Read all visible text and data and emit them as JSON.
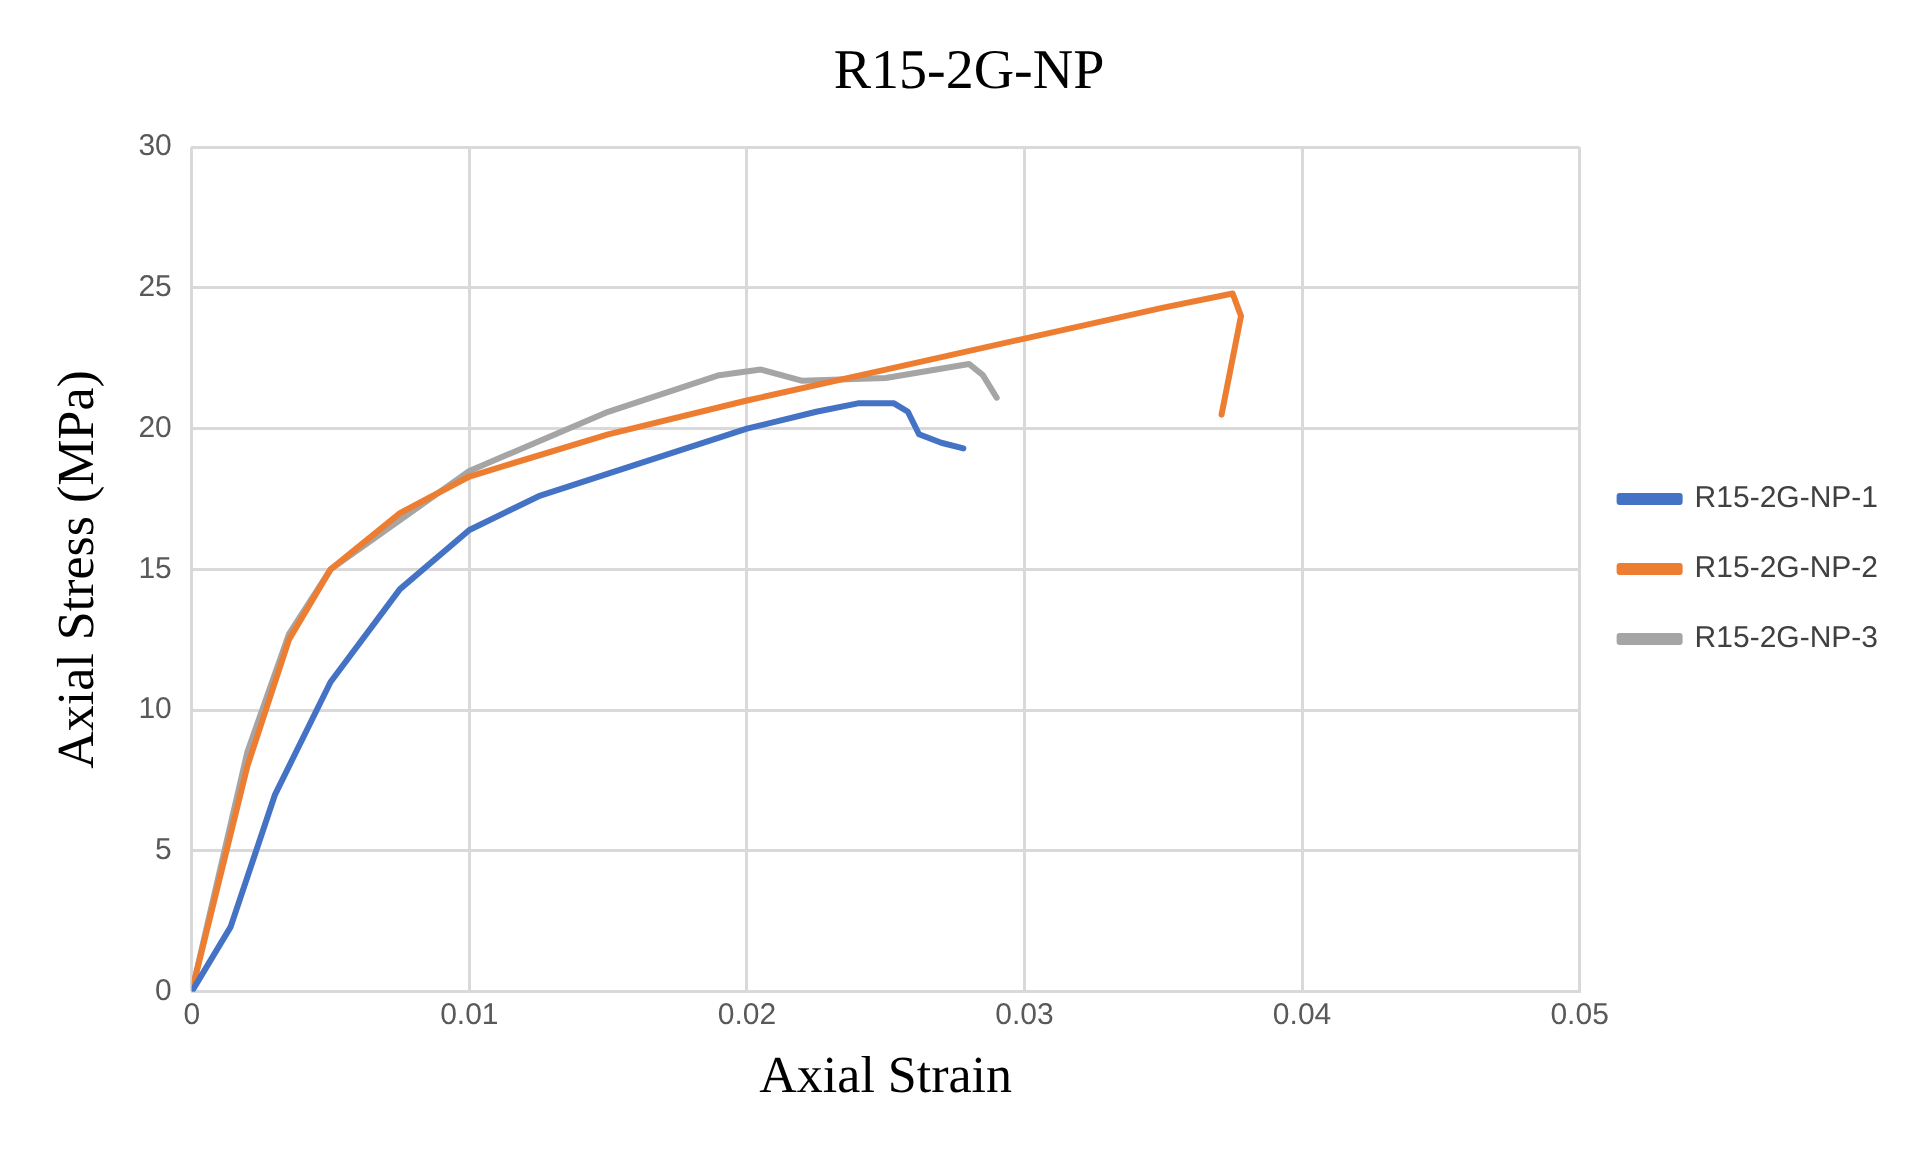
{
  "chart_data": {
    "type": "line",
    "title": "R15-2G-NP",
    "xlabel": "Axial Strain",
    "ylabel": "Axial Stress (MPa)",
    "xlim": [
      0,
      0.05
    ],
    "xticks": [
      {
        "value": 0,
        "label": "0"
      },
      0.01,
      0.02,
      0.03,
      0.04,
      0.05
    ],
    "ylim": [
      0,
      30
    ],
    "yticks": [
      0,
      5,
      10,
      15,
      20,
      25,
      30
    ],
    "grid": true,
    "legend": "right",
    "marker": "none",
    "line_style": "solid",
    "series": [
      {
        "name": "R15-2G-NP-1",
        "color": "#4472c4",
        "x": [
          0,
          0.0014,
          0.003,
          0.005,
          0.0075,
          0.01,
          0.0125,
          0.015,
          0.02,
          0.0225,
          0.024,
          0.0253,
          0.0258,
          0.0262,
          0.027,
          0.0278
        ],
        "values": [
          0,
          2.3,
          7,
          11,
          14.3,
          16.4,
          17.6,
          18.4,
          20.0,
          20.6,
          20.9,
          20.9,
          20.6,
          19.8,
          19.5,
          19.3
        ]
      },
      {
        "name": "R15-2G-NP-2",
        "color": "#ed7d31",
        "x": [
          0,
          0.002,
          0.0035,
          0.005,
          0.0075,
          0.01,
          0.015,
          0.02,
          0.025,
          0.03,
          0.035,
          0.0375,
          0.0378,
          0.0375,
          0.0371
        ],
        "values": [
          0,
          8,
          12.5,
          15,
          17,
          18.3,
          19.8,
          21,
          22.1,
          23.2,
          24.3,
          24.8,
          24.0,
          22.5,
          20.5
        ]
      },
      {
        "name": "R15-2G-NP-3",
        "color": "#a5a5a5",
        "x": [
          0,
          0.002,
          0.0035,
          0.005,
          0.01,
          0.015,
          0.019,
          0.0205,
          0.022,
          0.025,
          0.028,
          0.0285,
          0.029
        ],
        "values": [
          0,
          8.5,
          12.7,
          15,
          18.5,
          20.6,
          21.9,
          22.1,
          21.7,
          21.8,
          22.3,
          21.9,
          21.1
        ]
      }
    ]
  }
}
